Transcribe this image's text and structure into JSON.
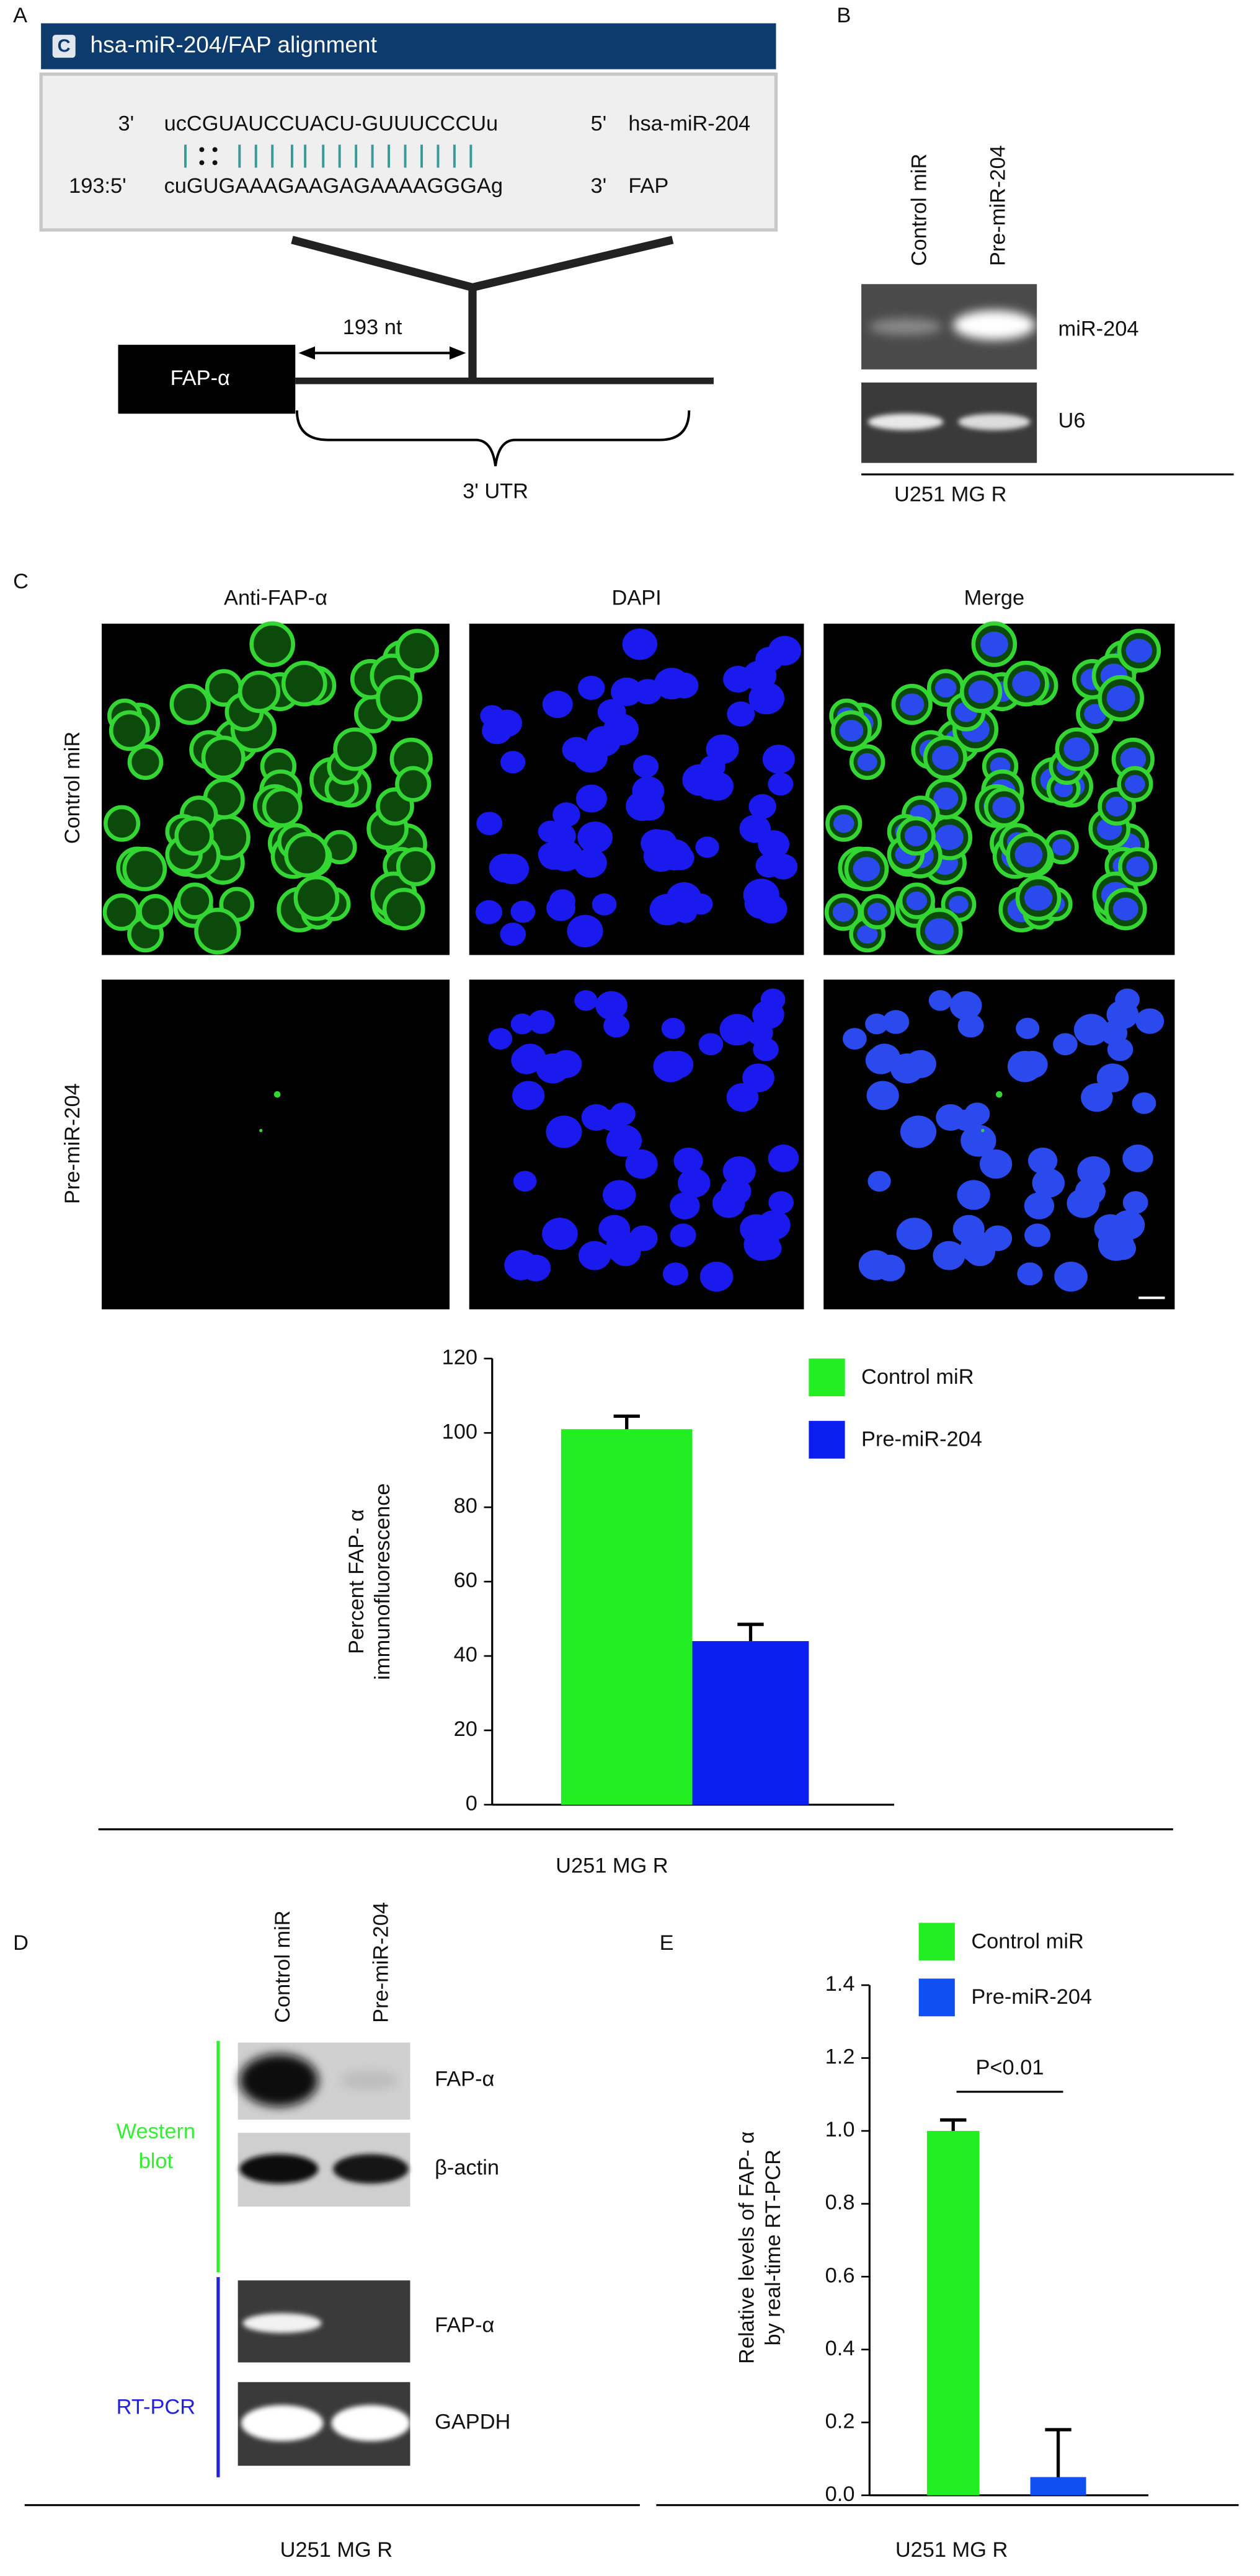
{
  "panel_labels": [
    "A",
    "B",
    "C",
    "D",
    "E"
  ],
  "alignment": {
    "icon": "C",
    "title": "hsa-miR-204/FAP alignment",
    "mirna": {
      "end_left": "3'",
      "sequence": "ucCGUAUCCUACU-GUUUCCCUu",
      "end_right": "5'",
      "name": "hsa-miR-204"
    },
    "target": {
      "end_left": "193:5'",
      "sequence": "cuGUGAAAGAAGAGAAAAGGGAg",
      "end_right": "3'",
      "name": "FAP"
    },
    "gene": "FAP-α",
    "distance": "193 nt",
    "region": "3' UTR"
  },
  "panel_b": {
    "lanes": [
      "Control miR",
      "Pre-miR-204"
    ],
    "bands": [
      "miR-204",
      "U6"
    ],
    "cell_line": "U251 MG R"
  },
  "panel_c": {
    "columns": [
      "Anti-FAP-α",
      "DAPI",
      "Merge"
    ],
    "rows": [
      "Control miR",
      "Pre-miR-204"
    ]
  },
  "panel_d": {
    "lanes": [
      "Control miR",
      "Pre-miR-204"
    ],
    "groups": [
      {
        "lines": [
          "Western",
          "blot"
        ],
        "color": "#33ee33"
      },
      {
        "lines": [
          "RT-PCR"
        ],
        "color": "#2222dd"
      }
    ],
    "bands": [
      "FAP-α",
      "β-actin",
      "FAP-α",
      "GAPDH"
    ],
    "cell_line": "U251 MG R"
  },
  "chart_data": [
    {
      "type": "bar",
      "categories": [
        null
      ],
      "series": [
        {
          "name": "Control miR",
          "color": "#22ee22",
          "values": [
            101
          ],
          "errors": [
            3.5
          ]
        },
        {
          "name": "Pre-miR-204",
          "color": "#0a1ef0",
          "values": [
            44
          ],
          "errors": [
            4.5
          ]
        }
      ],
      "ylabel": [
        "Percent FAP- α",
        "immunofluorescence"
      ],
      "xlabel": "U251 MG R",
      "ylim": [
        0,
        120
      ],
      "yticks": [
        0,
        20,
        40,
        60,
        80,
        100,
        120
      ]
    },
    {
      "type": "bar",
      "categories": [
        null
      ],
      "series": [
        {
          "name": "Control miR",
          "color": "#22ee22",
          "values": [
            1.0
          ],
          "errors": [
            0.03
          ]
        },
        {
          "name": "Pre-miR-204",
          "color": "#1050f0",
          "values": [
            0.05
          ],
          "errors": [
            0.13
          ]
        }
      ],
      "ylabel": [
        "Relative levels of FAP- α",
        "by real-time RT-PCR"
      ],
      "xlabel": "U251 MG R",
      "annotation": "P<0.01",
      "ylim": [
        0,
        1.4
      ],
      "yticks": [
        {
          "value": 0,
          "label": "0.0"
        },
        0.2,
        0.4,
        0.6,
        0.8,
        {
          "value": 1,
          "label": "1.0"
        },
        1.2,
        1.4
      ]
    }
  ]
}
